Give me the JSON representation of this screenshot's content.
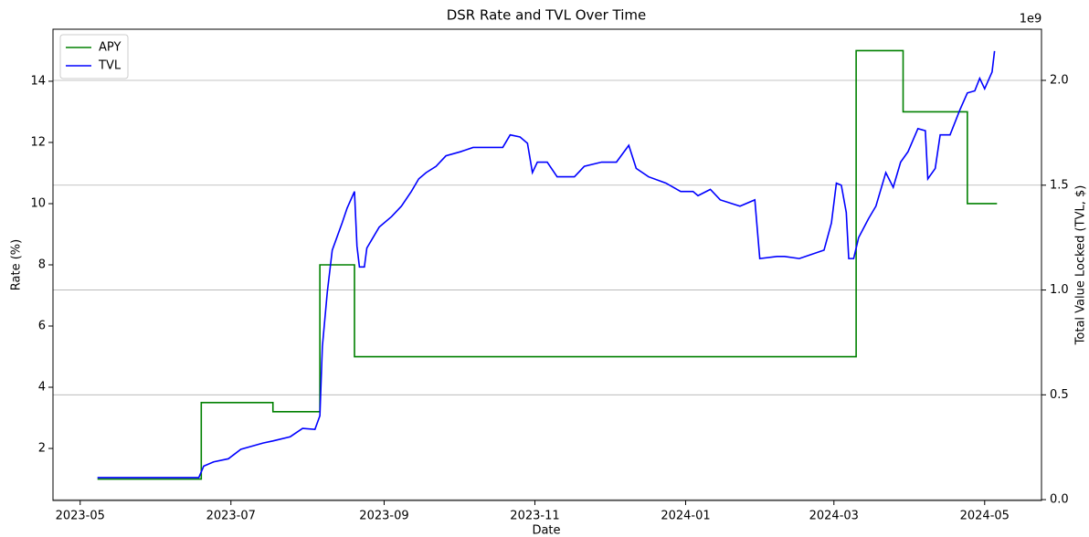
{
  "chart_data": {
    "type": "line",
    "title": "DSR Rate and TVL Over Time",
    "x_label": "Date",
    "y_label": "Rate (%)",
    "y2_label": "Total Value Locked (TVL, $)",
    "y2_offset_label": "1e9",
    "xlim": [
      "2023-04-20",
      "2024-05-24"
    ],
    "xticks": [
      "2023-05",
      "2023-07",
      "2023-09",
      "2023-11",
      "2024-01",
      "2024-03",
      "2024-05"
    ],
    "ylim": [
      0.3,
      15.7
    ],
    "yticks": [
      2,
      4,
      6,
      8,
      10,
      12,
      14
    ],
    "y2lim": [
      -0.004,
      2.244
    ],
    "y2ticks": [
      {
        "value": 0,
        "label": "0.0"
      },
      0.5,
      {
        "value": 1,
        "label": "1.0"
      },
      1.5,
      {
        "value": 2,
        "label": "2.0"
      }
    ],
    "grid": "y2",
    "legend": "upper left",
    "series": [
      {
        "name": "APY",
        "color": "#008000",
        "step": "post",
        "x": [
          "2023-05-08",
          "2023-06-19",
          "2023-07-18",
          "2023-08-06",
          "2023-08-20",
          "2024-03-10",
          "2024-03-29",
          "2024-04-24",
          "2024-05-06"
        ],
        "values": [
          1,
          3.5,
          3.2,
          8,
          5,
          15,
          13,
          10,
          10
        ]
      },
      {
        "name": "TVL",
        "color": "#0000ff",
        "axis": "y2",
        "x": [
          "2023-05-08",
          "2023-06-18",
          "2023-06-20",
          "2023-06-24",
          "2023-06-30",
          "2023-07-05",
          "2023-07-14",
          "2023-07-18",
          "2023-07-25",
          "2023-07-30",
          "2023-08-04",
          "2023-08-06",
          "2023-08-07",
          "2023-08-09",
          "2023-08-11",
          "2023-08-15",
          "2023-08-17",
          "2023-08-20",
          "2023-08-21",
          "2023-08-22",
          "2023-08-24",
          "2023-08-25",
          "2023-08-27",
          "2023-08-30",
          "2023-09-04",
          "2023-09-08",
          "2023-09-12",
          "2023-09-15",
          "2023-09-18",
          "2023-09-22",
          "2023-09-26",
          "2023-10-02",
          "2023-10-07",
          "2023-10-13",
          "2023-10-19",
          "2023-10-22",
          "2023-10-26",
          "2023-10-29",
          "2023-10-31",
          "2023-11-02",
          "2023-11-06",
          "2023-11-10",
          "2023-11-17",
          "2023-11-21",
          "2023-11-28",
          "2023-12-04",
          "2023-12-09",
          "2023-12-12",
          "2023-12-17",
          "2023-12-24",
          "2023-12-30",
          "2024-01-04",
          "2024-01-06",
          "2024-01-11",
          "2024-01-15",
          "2024-01-23",
          "2024-01-29",
          "2024-01-31",
          "2024-02-07",
          "2024-02-10",
          "2024-02-16",
          "2024-02-21",
          "2024-02-26",
          "2024-02-29",
          "2024-03-02",
          "2024-03-04",
          "2024-03-06",
          "2024-03-07",
          "2024-03-09",
          "2024-03-11",
          "2024-03-15",
          "2024-03-18",
          "2024-03-22",
          "2024-03-25",
          "2024-03-28",
          "2024-03-31",
          "2024-04-04",
          "2024-04-07",
          "2024-04-08",
          "2024-04-11",
          "2024-04-13",
          "2024-04-17",
          "2024-04-21",
          "2024-04-24",
          "2024-04-27",
          "2024-04-29",
          "2024-05-01",
          "2024-05-04",
          "2024-05-05"
        ],
        "values": [
          0.105,
          0.105,
          0.16,
          0.18,
          0.195,
          0.24,
          0.27,
          0.28,
          0.3,
          0.34,
          0.335,
          0.4,
          0.73,
          0.99,
          1.19,
          1.32,
          1.39,
          1.47,
          1.21,
          1.11,
          1.11,
          1.2,
          1.24,
          1.3,
          1.35,
          1.4,
          1.47,
          1.53,
          1.56,
          1.59,
          1.64,
          1.66,
          1.68,
          1.68,
          1.68,
          1.74,
          1.73,
          1.7,
          1.56,
          1.61,
          1.61,
          1.54,
          1.54,
          1.59,
          1.61,
          1.61,
          1.69,
          1.58,
          1.54,
          1.51,
          1.47,
          1.47,
          1.45,
          1.48,
          1.43,
          1.4,
          1.43,
          1.15,
          1.16,
          1.16,
          1.15,
          1.17,
          1.19,
          1.32,
          1.51,
          1.5,
          1.37,
          1.15,
          1.15,
          1.25,
          1.34,
          1.4,
          1.56,
          1.49,
          1.61,
          1.66,
          1.77,
          1.76,
          1.53,
          1.58,
          1.74,
          1.74,
          1.86,
          1.94,
          1.95,
          2.01,
          1.96,
          2.04,
          2.14
        ]
      }
    ]
  }
}
